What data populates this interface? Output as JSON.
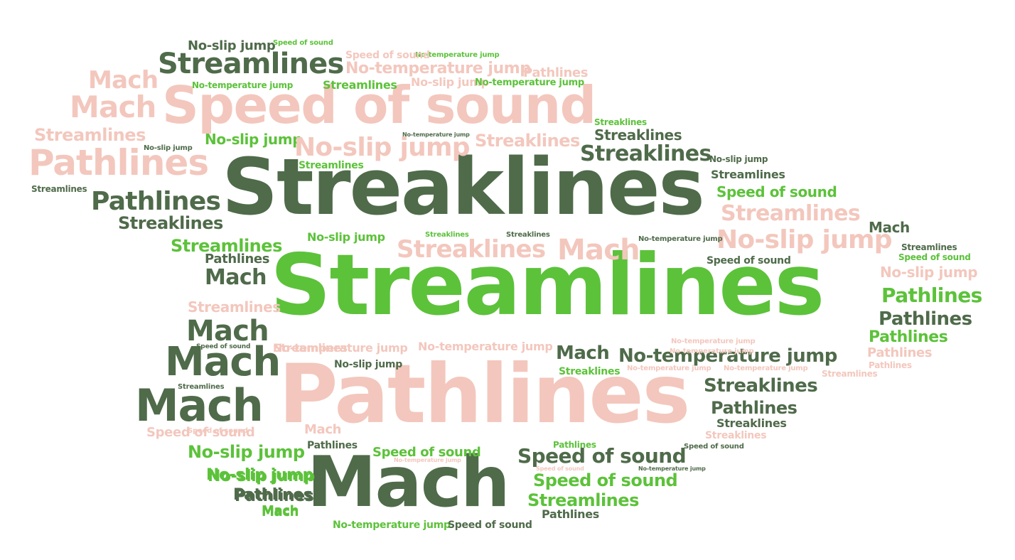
{
  "palette": {
    "dark": "#4f6b4a",
    "green": "#5cc23a",
    "pink": "#f3c7bd",
    "background": "#ffffff"
  },
  "words": [
    {
      "text": "Streamlines",
      "color": "green"
    },
    {
      "text": "Streaklines",
      "color": "dark"
    },
    {
      "text": "Pathlines",
      "color": "pink"
    },
    {
      "text": "Mach",
      "color": "dark"
    },
    {
      "text": "Speed of sound",
      "color": "pink"
    },
    {
      "text": "Streamlines",
      "color": "dark"
    },
    {
      "text": "Mach",
      "color": "pink"
    },
    {
      "text": "Mach",
      "color": "pink"
    },
    {
      "text": "Pathlines",
      "color": "pink"
    },
    {
      "text": "Streamlines",
      "color": "pink"
    },
    {
      "text": "Pathlines",
      "color": "dark"
    },
    {
      "text": "Streaklines",
      "color": "dark"
    },
    {
      "text": "Streamlines",
      "color": "green"
    },
    {
      "text": "Pathlines",
      "color": "dark"
    },
    {
      "text": "Mach",
      "color": "dark"
    },
    {
      "text": "Streamlines",
      "color": "pink"
    },
    {
      "text": "Mach",
      "color": "dark"
    },
    {
      "text": "Mach",
      "color": "dark"
    },
    {
      "text": "Mach",
      "color": "dark"
    },
    {
      "text": "Speed of sound",
      "color": "pink"
    },
    {
      "text": "No-slip jump",
      "color": "green"
    },
    {
      "text": "No-slip jump",
      "color": "green"
    },
    {
      "text": "Pathlines",
      "color": "dark"
    },
    {
      "text": "Mach",
      "color": "green"
    },
    {
      "text": "No-slip jump",
      "color": "dark"
    },
    {
      "text": "Speed of sound",
      "color": "green"
    },
    {
      "text": "No-temperature jump",
      "color": "green"
    },
    {
      "text": "Speed of sound",
      "color": "pink"
    },
    {
      "text": "No-temperature jump",
      "color": "pink"
    },
    {
      "text": "Pathlines",
      "color": "pink"
    },
    {
      "text": "No-temperature jump",
      "color": "green"
    },
    {
      "text": "Streamlines",
      "color": "green"
    },
    {
      "text": "No-slip jump",
      "color": "pink"
    },
    {
      "text": "No-temperature jump",
      "color": "green"
    },
    {
      "text": "Streaklines",
      "color": "green"
    },
    {
      "text": "Streaklines",
      "color": "dark"
    },
    {
      "text": "Streaklines",
      "color": "dark"
    },
    {
      "text": "No-temperature jump",
      "color": "dark"
    },
    {
      "text": "No-slip jump",
      "color": "green"
    },
    {
      "text": "Streaklines",
      "color": "pink"
    },
    {
      "text": "No-slip jump",
      "color": "pink"
    },
    {
      "text": "Streamlines",
      "color": "green"
    },
    {
      "text": "No-slip jump",
      "color": "dark"
    },
    {
      "text": "Streamlines",
      "color": "dark"
    },
    {
      "text": "Speed of sound",
      "color": "green"
    },
    {
      "text": "Streamlines",
      "color": "dark"
    },
    {
      "text": "No-slip jump",
      "color": "dark"
    },
    {
      "text": "Streamlines",
      "color": "pink"
    },
    {
      "text": "Mach",
      "color": "dark"
    },
    {
      "text": "No-slip jump",
      "color": "pink"
    },
    {
      "text": "Streamlines",
      "color": "dark"
    },
    {
      "text": "Speed of sound",
      "color": "green"
    },
    {
      "text": "Speed of sound",
      "color": "dark"
    },
    {
      "text": "No-slip jump",
      "color": "pink"
    },
    {
      "text": "Pathlines",
      "color": "green"
    },
    {
      "text": "Pathlines",
      "color": "dark"
    },
    {
      "text": "Pathlines",
      "color": "green"
    },
    {
      "text": "Pathlines",
      "color": "pink"
    },
    {
      "text": "Pathlines",
      "color": "pink"
    },
    {
      "text": "No-slip jump",
      "color": "green"
    },
    {
      "text": "Streaklines",
      "color": "pink"
    },
    {
      "text": "Streaklines",
      "color": "green"
    },
    {
      "text": "Streaklines",
      "color": "dark"
    },
    {
      "text": "Mach",
      "color": "pink"
    },
    {
      "text": "No-temperature jump",
      "color": "dark"
    },
    {
      "text": "Streamlines",
      "color": "pink"
    },
    {
      "text": "Speed of sound",
      "color": "dark"
    },
    {
      "text": "No-temperature jump",
      "color": "pink"
    },
    {
      "text": "No-temperature jump",
      "color": "pink"
    },
    {
      "text": "Mach",
      "color": "dark"
    },
    {
      "text": "No-temperature jump",
      "color": "dark"
    },
    {
      "text": "No-slip jump",
      "color": "dark"
    },
    {
      "text": "Streamlines",
      "color": "dark"
    },
    {
      "text": "Streaklines",
      "color": "green"
    },
    {
      "text": "No-temperature jump",
      "color": "pink"
    },
    {
      "text": "No-temperature jump",
      "color": "pink"
    },
    {
      "text": "No-temperature jump",
      "color": "pink"
    },
    {
      "text": "No-temperature jump",
      "color": "pink"
    },
    {
      "text": "Streamlines",
      "color": "pink"
    },
    {
      "text": "Streaklines",
      "color": "dark"
    },
    {
      "text": "Pathlines",
      "color": "dark"
    },
    {
      "text": "Streaklines",
      "color": "dark"
    },
    {
      "text": "Streaklines",
      "color": "pink"
    },
    {
      "text": "Mach",
      "color": "pink"
    },
    {
      "text": "Speed of sound",
      "color": "pink"
    },
    {
      "text": "Pathlines",
      "color": "dark"
    },
    {
      "text": "Speed of sound",
      "color": "green"
    },
    {
      "text": "Pathlines",
      "color": "green"
    },
    {
      "text": "Speed of sound",
      "color": "dark"
    },
    {
      "text": "No-temperature jump",
      "color": "pink"
    },
    {
      "text": "Speed of sound",
      "color": "pink"
    },
    {
      "text": "Speed of sound",
      "color": "dark"
    },
    {
      "text": "No-temperature jump",
      "color": "dark"
    },
    {
      "text": "No-slip jump",
      "color": "green"
    },
    {
      "text": "Speed of sound",
      "color": "green"
    },
    {
      "text": "Pathlines",
      "color": "dark"
    },
    {
      "text": "Streamlines",
      "color": "green"
    },
    {
      "text": "Mach",
      "color": "green"
    },
    {
      "text": "Pathlines",
      "color": "dark"
    },
    {
      "text": "No-temperature jump",
      "color": "green"
    },
    {
      "text": "Speed of sound",
      "color": "dark"
    }
  ]
}
